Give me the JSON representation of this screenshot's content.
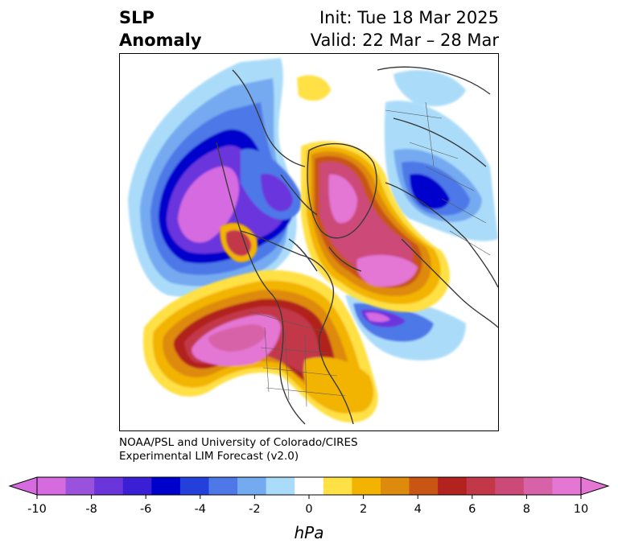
{
  "title": {
    "left_line1": "SLP",
    "left_line2": "Anomaly",
    "right_line1": "Init: Tue 18 Mar 2025",
    "right_line2": "Valid: 22 Mar – 28 Mar"
  },
  "credit": {
    "line1": "NOAA/PSL and University of Colorado/CIRES",
    "line2": "Experimental LIM Forecast (v2.0)"
  },
  "colorbar": {
    "unit": "hPa",
    "ticks": [
      "-10",
      "-8",
      "-6",
      "-4",
      "-2",
      "0",
      "2",
      "4",
      "6",
      "8",
      "10"
    ],
    "levels": [
      -10,
      -9,
      -8,
      -7,
      -6,
      -5,
      -4,
      -3,
      -2,
      -1,
      1,
      2,
      3,
      4,
      5,
      6,
      7,
      8,
      9,
      10
    ],
    "colors": [
      "#d66be0",
      "#9a52dc",
      "#6a36dc",
      "#3a1fd4",
      "#0000cc",
      "#2340dc",
      "#4e78e8",
      "#74aaf0",
      "#aadcfa",
      "#ffffff",
      "#ffe045",
      "#f2b400",
      "#de8a0c",
      "#c85514",
      "#b2221e",
      "#c23848",
      "#cc4a78",
      "#d862a8",
      "#e476d4"
    ],
    "extend_low": "#d66be0",
    "extend_high": "#e476d4"
  }
}
